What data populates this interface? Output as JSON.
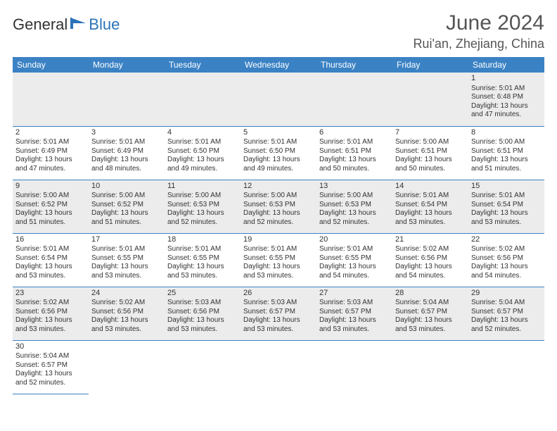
{
  "brand": {
    "text_general": "General",
    "text_blue": "Blue",
    "icon_color": "#2b73b7"
  },
  "header": {
    "title": "June 2024",
    "location": "Rui'an, Zhejiang, China"
  },
  "styling": {
    "page_background": "#ffffff",
    "header_bar_color": "#3b82c4",
    "header_text_color": "#ffffff",
    "row_odd_bg": "#ffffff",
    "row_even_bg": "#ececec",
    "cell_border_color": "#3b82c4",
    "body_text_color": "#333333",
    "title_color": "#555555",
    "day_header_fontsize": 12,
    "cell_fontsize": 10,
    "title_fontsize": 30,
    "subtitle_fontsize": 18
  },
  "calendar": {
    "day_headers": [
      "Sunday",
      "Monday",
      "Tuesday",
      "Wednesday",
      "Thursday",
      "Friday",
      "Saturday"
    ],
    "first_weekday_index": 6,
    "days": {
      "1": {
        "sunrise": "Sunrise: 5:01 AM",
        "sunset": "Sunset: 6:48 PM",
        "daylight1": "Daylight: 13 hours",
        "daylight2": "and 47 minutes."
      },
      "2": {
        "sunrise": "Sunrise: 5:01 AM",
        "sunset": "Sunset: 6:49 PM",
        "daylight1": "Daylight: 13 hours",
        "daylight2": "and 47 minutes."
      },
      "3": {
        "sunrise": "Sunrise: 5:01 AM",
        "sunset": "Sunset: 6:49 PM",
        "daylight1": "Daylight: 13 hours",
        "daylight2": "and 48 minutes."
      },
      "4": {
        "sunrise": "Sunrise: 5:01 AM",
        "sunset": "Sunset: 6:50 PM",
        "daylight1": "Daylight: 13 hours",
        "daylight2": "and 49 minutes."
      },
      "5": {
        "sunrise": "Sunrise: 5:01 AM",
        "sunset": "Sunset: 6:50 PM",
        "daylight1": "Daylight: 13 hours",
        "daylight2": "and 49 minutes."
      },
      "6": {
        "sunrise": "Sunrise: 5:01 AM",
        "sunset": "Sunset: 6:51 PM",
        "daylight1": "Daylight: 13 hours",
        "daylight2": "and 50 minutes."
      },
      "7": {
        "sunrise": "Sunrise: 5:00 AM",
        "sunset": "Sunset: 6:51 PM",
        "daylight1": "Daylight: 13 hours",
        "daylight2": "and 50 minutes."
      },
      "8": {
        "sunrise": "Sunrise: 5:00 AM",
        "sunset": "Sunset: 6:51 PM",
        "daylight1": "Daylight: 13 hours",
        "daylight2": "and 51 minutes."
      },
      "9": {
        "sunrise": "Sunrise: 5:00 AM",
        "sunset": "Sunset: 6:52 PM",
        "daylight1": "Daylight: 13 hours",
        "daylight2": "and 51 minutes."
      },
      "10": {
        "sunrise": "Sunrise: 5:00 AM",
        "sunset": "Sunset: 6:52 PM",
        "daylight1": "Daylight: 13 hours",
        "daylight2": "and 51 minutes."
      },
      "11": {
        "sunrise": "Sunrise: 5:00 AM",
        "sunset": "Sunset: 6:53 PM",
        "daylight1": "Daylight: 13 hours",
        "daylight2": "and 52 minutes."
      },
      "12": {
        "sunrise": "Sunrise: 5:00 AM",
        "sunset": "Sunset: 6:53 PM",
        "daylight1": "Daylight: 13 hours",
        "daylight2": "and 52 minutes."
      },
      "13": {
        "sunrise": "Sunrise: 5:00 AM",
        "sunset": "Sunset: 6:53 PM",
        "daylight1": "Daylight: 13 hours",
        "daylight2": "and 52 minutes."
      },
      "14": {
        "sunrise": "Sunrise: 5:01 AM",
        "sunset": "Sunset: 6:54 PM",
        "daylight1": "Daylight: 13 hours",
        "daylight2": "and 53 minutes."
      },
      "15": {
        "sunrise": "Sunrise: 5:01 AM",
        "sunset": "Sunset: 6:54 PM",
        "daylight1": "Daylight: 13 hours",
        "daylight2": "and 53 minutes."
      },
      "16": {
        "sunrise": "Sunrise: 5:01 AM",
        "sunset": "Sunset: 6:54 PM",
        "daylight1": "Daylight: 13 hours",
        "daylight2": "and 53 minutes."
      },
      "17": {
        "sunrise": "Sunrise: 5:01 AM",
        "sunset": "Sunset: 6:55 PM",
        "daylight1": "Daylight: 13 hours",
        "daylight2": "and 53 minutes."
      },
      "18": {
        "sunrise": "Sunrise: 5:01 AM",
        "sunset": "Sunset: 6:55 PM",
        "daylight1": "Daylight: 13 hours",
        "daylight2": "and 53 minutes."
      },
      "19": {
        "sunrise": "Sunrise: 5:01 AM",
        "sunset": "Sunset: 6:55 PM",
        "daylight1": "Daylight: 13 hours",
        "daylight2": "and 53 minutes."
      },
      "20": {
        "sunrise": "Sunrise: 5:01 AM",
        "sunset": "Sunset: 6:55 PM",
        "daylight1": "Daylight: 13 hours",
        "daylight2": "and 54 minutes."
      },
      "21": {
        "sunrise": "Sunrise: 5:02 AM",
        "sunset": "Sunset: 6:56 PM",
        "daylight1": "Daylight: 13 hours",
        "daylight2": "and 54 minutes."
      },
      "22": {
        "sunrise": "Sunrise: 5:02 AM",
        "sunset": "Sunset: 6:56 PM",
        "daylight1": "Daylight: 13 hours",
        "daylight2": "and 54 minutes."
      },
      "23": {
        "sunrise": "Sunrise: 5:02 AM",
        "sunset": "Sunset: 6:56 PM",
        "daylight1": "Daylight: 13 hours",
        "daylight2": "and 53 minutes."
      },
      "24": {
        "sunrise": "Sunrise: 5:02 AM",
        "sunset": "Sunset: 6:56 PM",
        "daylight1": "Daylight: 13 hours",
        "daylight2": "and 53 minutes."
      },
      "25": {
        "sunrise": "Sunrise: 5:03 AM",
        "sunset": "Sunset: 6:56 PM",
        "daylight1": "Daylight: 13 hours",
        "daylight2": "and 53 minutes."
      },
      "26": {
        "sunrise": "Sunrise: 5:03 AM",
        "sunset": "Sunset: 6:57 PM",
        "daylight1": "Daylight: 13 hours",
        "daylight2": "and 53 minutes."
      },
      "27": {
        "sunrise": "Sunrise: 5:03 AM",
        "sunset": "Sunset: 6:57 PM",
        "daylight1": "Daylight: 13 hours",
        "daylight2": "and 53 minutes."
      },
      "28": {
        "sunrise": "Sunrise: 5:04 AM",
        "sunset": "Sunset: 6:57 PM",
        "daylight1": "Daylight: 13 hours",
        "daylight2": "and 53 minutes."
      },
      "29": {
        "sunrise": "Sunrise: 5:04 AM",
        "sunset": "Sunset: 6:57 PM",
        "daylight1": "Daylight: 13 hours",
        "daylight2": "and 52 minutes."
      },
      "30": {
        "sunrise": "Sunrise: 5:04 AM",
        "sunset": "Sunset: 6:57 PM",
        "daylight1": "Daylight: 13 hours",
        "daylight2": "and 52 minutes."
      }
    }
  }
}
